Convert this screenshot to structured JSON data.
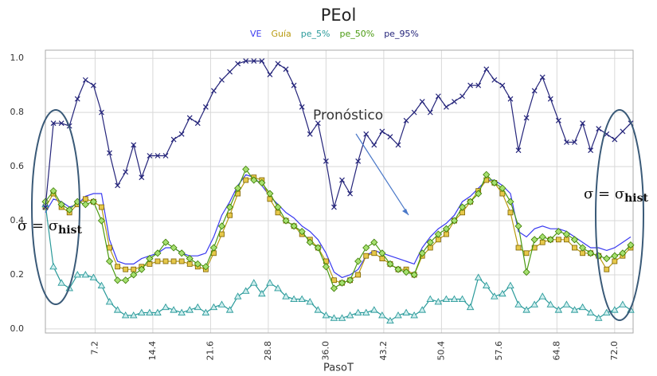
{
  "chart_data": {
    "type": "line",
    "title": "PEol",
    "xlabel": "PasoT",
    "x": [
      1,
      2,
      3,
      4,
      5,
      6,
      7,
      8,
      9,
      10,
      11,
      12,
      13,
      14,
      15,
      16,
      17,
      18,
      19,
      20,
      21,
      22,
      23,
      24,
      25,
      26,
      27,
      28,
      29,
      30,
      31,
      32,
      33,
      34,
      35,
      36,
      37,
      38,
      39,
      40,
      41,
      42,
      43,
      44,
      45,
      46,
      47,
      48,
      49,
      50,
      51,
      52,
      53,
      54,
      55,
      56,
      57,
      58,
      59,
      60,
      61,
      62,
      63,
      64,
      65,
      66,
      67,
      68,
      69,
      70,
      71,
      72,
      73,
      74
    ],
    "xlim": [
      1,
      74.3
    ],
    "xticks": [
      7.2,
      14.4,
      21.6,
      28.8,
      {
        "value": 36,
        "label": "36.0"
      },
      43.2,
      50.4,
      57.6,
      64.8,
      {
        "value": 72,
        "label": "72.0"
      }
    ],
    "ylim": [
      -0.015,
      1.03
    ],
    "yticks": [
      {
        "value": 0,
        "label": "0.0"
      },
      0.2,
      0.4,
      0.6,
      0.8,
      {
        "value": 1,
        "label": "1.0"
      }
    ],
    "grid": true,
    "series": [
      {
        "name": "VE",
        "color": "#3a3af0",
        "marker": "none",
        "values": [
          0.43,
          0.48,
          0.47,
          0.45,
          0.46,
          0.49,
          0.5,
          0.5,
          0.33,
          0.25,
          0.24,
          0.24,
          0.26,
          0.27,
          0.28,
          0.3,
          0.3,
          0.28,
          0.27,
          0.27,
          0.28,
          0.34,
          0.42,
          0.47,
          0.53,
          0.57,
          0.56,
          0.53,
          0.49,
          0.46,
          0.43,
          0.41,
          0.38,
          0.36,
          0.33,
          0.28,
          0.21,
          0.19,
          0.2,
          0.22,
          0.27,
          0.29,
          0.28,
          0.27,
          0.26,
          0.25,
          0.24,
          0.3,
          0.34,
          0.37,
          0.39,
          0.42,
          0.47,
          0.49,
          0.52,
          0.55,
          0.55,
          0.53,
          0.5,
          0.36,
          0.34,
          0.37,
          0.38,
          0.37,
          0.37,
          0.36,
          0.34,
          0.32,
          0.3,
          0.3,
          0.29,
          0.3,
          0.32,
          0.34
        ]
      },
      {
        "name": "Guía",
        "color": "#b89a10",
        "marker": "square",
        "values": [
          0.45,
          0.5,
          0.45,
          0.43,
          0.46,
          0.48,
          0.47,
          0.45,
          0.3,
          0.23,
          0.22,
          0.22,
          0.23,
          0.24,
          0.25,
          0.25,
          0.25,
          0.25,
          0.24,
          0.23,
          0.22,
          0.28,
          0.35,
          0.42,
          0.5,
          0.55,
          0.56,
          0.55,
          0.48,
          0.43,
          0.4,
          0.38,
          0.35,
          0.33,
          0.3,
          0.25,
          0.18,
          0.17,
          0.18,
          0.2,
          0.27,
          0.28,
          0.26,
          0.24,
          0.22,
          0.22,
          0.2,
          0.27,
          0.3,
          0.33,
          0.35,
          0.4,
          0.43,
          0.47,
          0.51,
          0.55,
          0.54,
          0.5,
          0.43,
          0.3,
          0.28,
          0.3,
          0.32,
          0.33,
          0.33,
          0.33,
          0.3,
          0.28,
          0.28,
          0.27,
          0.22,
          0.25,
          0.27,
          0.3
        ]
      },
      {
        "name": "pe_5%",
        "color": "#2a9a9a",
        "marker": "triangle",
        "values": [
          0.46,
          0.23,
          0.17,
          0.15,
          0.2,
          0.2,
          0.19,
          0.16,
          0.1,
          0.07,
          0.05,
          0.05,
          0.06,
          0.06,
          0.06,
          0.08,
          0.07,
          0.06,
          0.07,
          0.08,
          0.06,
          0.08,
          0.09,
          0.07,
          0.12,
          0.14,
          0.17,
          0.13,
          0.17,
          0.15,
          0.12,
          0.11,
          0.11,
          0.1,
          0.07,
          0.05,
          0.04,
          0.04,
          0.05,
          0.06,
          0.06,
          0.07,
          0.05,
          0.03,
          0.05,
          0.06,
          0.05,
          0.07,
          0.11,
          0.1,
          0.11,
          0.11,
          0.11,
          0.08,
          0.19,
          0.16,
          0.12,
          0.13,
          0.16,
          0.09,
          0.07,
          0.09,
          0.12,
          0.09,
          0.07,
          0.09,
          0.07,
          0.08,
          0.06,
          0.04,
          0.06,
          0.07,
          0.09,
          0.07
        ]
      },
      {
        "name": "pe_50%",
        "color": "#4a9a10",
        "marker": "diamond",
        "values": [
          0.47,
          0.51,
          0.46,
          0.44,
          0.47,
          0.46,
          0.47,
          0.4,
          0.25,
          0.18,
          0.18,
          0.2,
          0.22,
          0.26,
          0.28,
          0.32,
          0.3,
          0.28,
          0.26,
          0.24,
          0.23,
          0.3,
          0.38,
          0.45,
          0.52,
          0.59,
          0.55,
          0.54,
          0.5,
          0.45,
          0.4,
          0.38,
          0.36,
          0.32,
          0.3,
          0.23,
          0.15,
          0.17,
          0.18,
          0.25,
          0.3,
          0.32,
          0.28,
          0.24,
          0.22,
          0.21,
          0.2,
          0.28,
          0.32,
          0.35,
          0.37,
          0.4,
          0.45,
          0.47,
          0.5,
          0.57,
          0.54,
          0.52,
          0.47,
          0.38,
          0.21,
          0.33,
          0.34,
          0.33,
          0.36,
          0.35,
          0.33,
          0.3,
          0.28,
          0.27,
          0.26,
          0.27,
          0.28,
          0.31
        ]
      },
      {
        "name": "pe_95%",
        "color": "#24247a",
        "marker": "x",
        "values": [
          0.45,
          0.76,
          0.76,
          0.75,
          0.85,
          0.92,
          0.9,
          0.8,
          0.65,
          0.53,
          0.58,
          0.68,
          0.56,
          0.64,
          0.64,
          0.64,
          0.7,
          0.72,
          0.78,
          0.76,
          0.82,
          0.88,
          0.92,
          0.95,
          0.98,
          0.99,
          0.99,
          0.99,
          0.94,
          0.98,
          0.96,
          0.9,
          0.82,
          0.72,
          0.76,
          0.62,
          0.45,
          0.55,
          0.5,
          0.62,
          0.72,
          0.68,
          0.73,
          0.71,
          0.68,
          0.77,
          0.8,
          0.84,
          0.8,
          0.86,
          0.82,
          0.84,
          0.86,
          0.9,
          0.9,
          0.96,
          0.92,
          0.9,
          0.85,
          0.66,
          0.78,
          0.88,
          0.93,
          0.85,
          0.77,
          0.69,
          0.69,
          0.76,
          0.66,
          0.74,
          0.72,
          0.7,
          0.73,
          0.76
        ]
      }
    ],
    "annotations": [
      {
        "text": "Pronóstico"
      },
      {
        "text": "σ = σ",
        "subscript": "hist"
      },
      {
        "text": "σ = σ",
        "subscript": "hist"
      }
    ]
  }
}
